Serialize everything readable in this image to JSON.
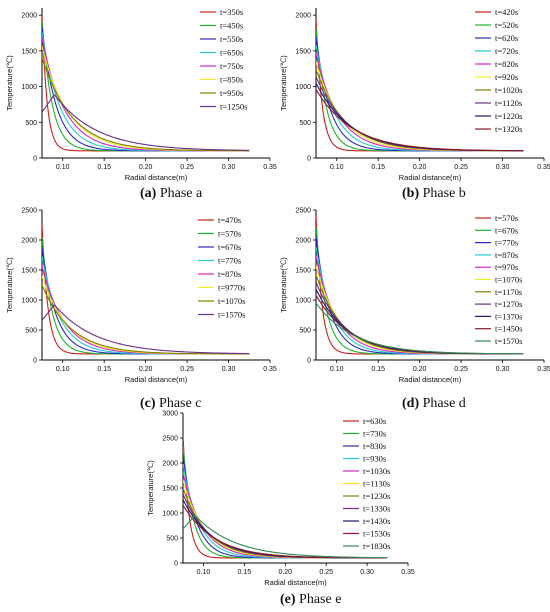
{
  "figure": {
    "xlabel": "Radial distance(m)",
    "ylabel": "Temperature(℃)",
    "xticks": [
      "0.10",
      "0.15",
      "0.20",
      "0.25",
      "0.30",
      "0.35"
    ],
    "yticks": [
      "0",
      "500",
      "1000",
      "1500",
      "2000",
      "2500"
    ]
  },
  "palette": [
    "#cc1f1f",
    "#22b22b",
    "#2b2bbf",
    "#23c9d6",
    "#d129c6",
    "#f2e92a",
    "#808000",
    "#6b2f8a",
    "#1b1b70",
    "#8b1a2b",
    "#2e8b57",
    "#5a5a5a"
  ],
  "chart_data": [
    {
      "type": "line",
      "id": "a",
      "caption_label": "(a)",
      "caption_text": " Phase a",
      "xlabel": "Radial distance(m)",
      "ylabel": "Temperature(℃)",
      "xlim": [
        0.075,
        0.35
      ],
      "ylim": [
        0,
        2100
      ],
      "yticks": [
        0,
        500,
        1000,
        1500,
        2000
      ],
      "series": [
        {
          "name": "t=350s",
          "peak": 2000,
          "decay": 0.006,
          "tail": 100
        },
        {
          "name": "t=450s",
          "peak": 1920,
          "decay": 0.012,
          "tail": 100
        },
        {
          "name": "t=550s",
          "peak": 1840,
          "decay": 0.017,
          "tail": 100
        },
        {
          "name": "t=650s",
          "peak": 1760,
          "decay": 0.022,
          "tail": 100
        },
        {
          "name": "t=750s",
          "peak": 1680,
          "decay": 0.027,
          "tail": 100
        },
        {
          "name": "t=850s",
          "peak": 1560,
          "decay": 0.032,
          "tail": 100
        },
        {
          "name": "t=950s",
          "peak": 1400,
          "decay": 0.036,
          "tail": 100
        },
        {
          "name": "t=1250s",
          "peak": 890,
          "decay": 0.05,
          "tail": 100,
          "hump": 0.09
        }
      ]
    },
    {
      "type": "line",
      "id": "b",
      "caption_label": "(b)",
      "caption_text": " Phase b",
      "xlabel": "Radial distance(m)",
      "ylabel": "Temperature(℃)",
      "xlim": [
        0.075,
        0.35
      ],
      "ylim": [
        0,
        2100
      ],
      "yticks": [
        0,
        500,
        1000,
        1500,
        2000
      ],
      "series": [
        {
          "name": "t=420s",
          "peak": 1950,
          "decay": 0.007,
          "tail": 100
        },
        {
          "name": "t=520s",
          "peak": 1820,
          "decay": 0.012,
          "tail": 100
        },
        {
          "name": "t=620s",
          "peak": 1700,
          "decay": 0.017,
          "tail": 100
        },
        {
          "name": "t=720s",
          "peak": 1580,
          "decay": 0.022,
          "tail": 100
        },
        {
          "name": "t=820s",
          "peak": 1460,
          "decay": 0.027,
          "tail": 100
        },
        {
          "name": "t=920s",
          "peak": 1340,
          "decay": 0.031,
          "tail": 100
        },
        {
          "name": "t=1020s",
          "peak": 1240,
          "decay": 0.035,
          "tail": 100
        },
        {
          "name": "t=1120s",
          "peak": 1140,
          "decay": 0.038,
          "tail": 100
        },
        {
          "name": "t=1220s",
          "peak": 1050,
          "decay": 0.041,
          "tail": 100
        },
        {
          "name": "t=1320s",
          "peak": 960,
          "decay": 0.044,
          "tail": 100
        }
      ]
    },
    {
      "type": "line",
      "id": "c",
      "caption_label": "(c)",
      "caption_text": " Phase c",
      "xlabel": "Radial distance(m)",
      "ylabel": "Temperature(℃)",
      "xlim": [
        0.075,
        0.35
      ],
      "ylim": [
        0,
        2500
      ],
      "yticks": [
        0,
        500,
        1000,
        1500,
        2000,
        2500
      ],
      "series": [
        {
          "name": "t=470s",
          "peak": 2250,
          "decay": 0.007,
          "tail": 100
        },
        {
          "name": "t=570s",
          "peak": 2050,
          "decay": 0.012,
          "tail": 100
        },
        {
          "name": "t=670s",
          "peak": 1880,
          "decay": 0.017,
          "tail": 100
        },
        {
          "name": "t=770s",
          "peak": 1720,
          "decay": 0.022,
          "tail": 100
        },
        {
          "name": "t=870s",
          "peak": 1560,
          "decay": 0.027,
          "tail": 100
        },
        {
          "name": "t=9770s",
          "peak": 1400,
          "decay": 0.031,
          "tail": 100
        },
        {
          "name": "t=1070s",
          "peak": 1250,
          "decay": 0.035,
          "tail": 100
        },
        {
          "name": "t=1570s",
          "peak": 920,
          "decay": 0.05,
          "tail": 100,
          "hump": 0.09
        }
      ]
    },
    {
      "type": "line",
      "id": "d",
      "caption_label": "(d)",
      "caption_text": " Phase d",
      "xlabel": "Radial distance(m)",
      "ylabel": "Temperature(℃)",
      "xlim": [
        0.075,
        0.35
      ],
      "ylim": [
        0,
        2500
      ],
      "yticks": [
        0,
        500,
        1000,
        1500,
        2000,
        2500
      ],
      "series": [
        {
          "name": "t=570s",
          "peak": 2400,
          "decay": 0.007,
          "tail": 100
        },
        {
          "name": "t=670s",
          "peak": 2220,
          "decay": 0.012,
          "tail": 100
        },
        {
          "name": "t=770s",
          "peak": 2050,
          "decay": 0.017,
          "tail": 100
        },
        {
          "name": "t=870s",
          "peak": 1880,
          "decay": 0.021,
          "tail": 100
        },
        {
          "name": "t=970s",
          "peak": 1720,
          "decay": 0.025,
          "tail": 100
        },
        {
          "name": "t=1070s",
          "peak": 1560,
          "decay": 0.029,
          "tail": 100
        },
        {
          "name": "t=1170s",
          "peak": 1420,
          "decay": 0.032,
          "tail": 100
        },
        {
          "name": "t=1270s",
          "peak": 1300,
          "decay": 0.035,
          "tail": 100
        },
        {
          "name": "t=1370s",
          "peak": 1180,
          "decay": 0.038,
          "tail": 100
        },
        {
          "name": "t=1450s",
          "peak": 1080,
          "decay": 0.041,
          "tail": 100
        },
        {
          "name": "t=1570s",
          "peak": 950,
          "decay": 0.045,
          "tail": 100
        }
      ]
    },
    {
      "type": "line",
      "id": "e",
      "caption_label": "(e)",
      "caption_text": " Phase e",
      "xlabel": "Radial distance(m)",
      "ylabel": "Temperature(℃)",
      "xlim": [
        0.075,
        0.35
      ],
      "ylim": [
        0,
        3000
      ],
      "yticks": [
        0,
        500,
        1000,
        1500,
        2000,
        2500,
        3000
      ],
      "series": [
        {
          "name": "t=630s",
          "peak": 2550,
          "decay": 0.007,
          "tail": 100
        },
        {
          "name": "t=730s",
          "peak": 2350,
          "decay": 0.012,
          "tail": 100
        },
        {
          "name": "t=830s",
          "peak": 2150,
          "decay": 0.016,
          "tail": 100
        },
        {
          "name": "t=930s",
          "peak": 1980,
          "decay": 0.02,
          "tail": 100
        },
        {
          "name": "t=1030s",
          "peak": 1800,
          "decay": 0.024,
          "tail": 100
        },
        {
          "name": "t=1130s",
          "peak": 1650,
          "decay": 0.027,
          "tail": 100
        },
        {
          "name": "t=1230s",
          "peak": 1500,
          "decay": 0.03,
          "tail": 100
        },
        {
          "name": "t=1330s",
          "peak": 1380,
          "decay": 0.033,
          "tail": 100
        },
        {
          "name": "t=1430s",
          "peak": 1270,
          "decay": 0.036,
          "tail": 100
        },
        {
          "name": "t=1530s",
          "peak": 1160,
          "decay": 0.039,
          "tail": 100
        },
        {
          "name": "t=1830s",
          "peak": 950,
          "decay": 0.048,
          "tail": 100,
          "hump": 0.09
        }
      ]
    }
  ]
}
